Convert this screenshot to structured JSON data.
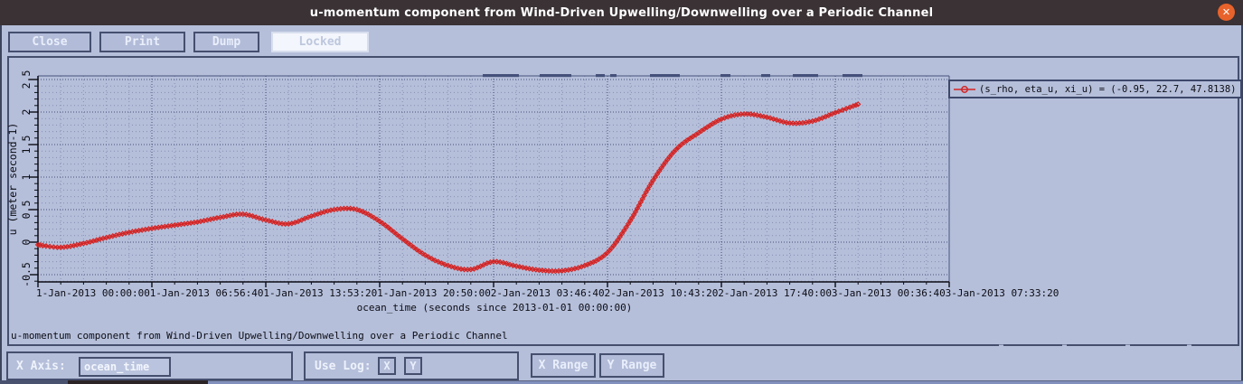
{
  "window": {
    "title": "u-momentum component from Wind-Driven Upwelling/Downwelling over a Periodic Channel",
    "close_icon": "✕"
  },
  "toolbar": {
    "close": "Close",
    "print": "Print",
    "dump": "Dump",
    "locked": "Locked"
  },
  "chart_data": {
    "type": "line",
    "title": "u-momentum component from Wind-Driven Upwelling/Downwelling over a Periodic Channel",
    "xlabel": "ocean_time (seconds since 2013-01-01 00:00:00)",
    "ylabel": "u (meter second-1)",
    "legend": "(s_rho, eta_u, xi_u) = (-0.95, 22.7, 47.8138)",
    "legend_position": "top-right",
    "grid": true,
    "xlim": [
      0,
      200000
    ],
    "ylim": [
      -0.61,
      2.56
    ],
    "x_tick_values": [
      0,
      25000,
      50000,
      75000,
      100000,
      125000,
      150000,
      175000,
      200000
    ],
    "x_tick_labels": [
      "1-Jan-2013 00:00:00",
      "1-Jan-2013 06:56:40",
      "1-Jan-2013 13:53:20",
      "1-Jan-2013 20:50:00",
      "2-Jan-2013 03:46:40",
      "2-Jan-2013 10:43:20",
      "2-Jan-2013 17:40:00",
      "3-Jan-2013 00:36:40",
      "3-Jan-2013 07:33:20"
    ],
    "y_ticks": [
      -0.5,
      0,
      0.5,
      1,
      1.5,
      2,
      2.5
    ],
    "x_minor_step": 5000,
    "y_minor_step": 0.1,
    "series": [
      {
        "name": "(s_rho, eta_u, xi_u) = (-0.95, 22.7, 47.8138)",
        "color": "#d42424",
        "marker": "open-diamond",
        "x": [
          0,
          5000,
          10000,
          15000,
          20000,
          25000,
          30000,
          35000,
          40000,
          45000,
          50000,
          55000,
          60000,
          65000,
          70000,
          75000,
          80000,
          85000,
          90000,
          95000,
          100000,
          105000,
          110000,
          115000,
          120000,
          125000,
          130000,
          135000,
          140000,
          145000,
          150000,
          155000,
          160000,
          165000,
          170000,
          175000,
          180000
        ],
        "values": [
          -0.04,
          -0.08,
          -0.02,
          0.07,
          0.15,
          0.21,
          0.26,
          0.31,
          0.38,
          0.43,
          0.34,
          0.28,
          0.4,
          0.5,
          0.5,
          0.32,
          0.05,
          -0.2,
          -0.36,
          -0.42,
          -0.3,
          -0.37,
          -0.43,
          -0.44,
          -0.36,
          -0.16,
          0.33,
          0.95,
          1.42,
          1.68,
          1.89,
          1.97,
          1.92,
          1.83,
          1.86,
          1.99,
          2.12
        ]
      }
    ]
  },
  "controls": {
    "x_axis_label": "X Axis:",
    "x_axis_value": "ocean_time",
    "use_log_label": "Use Log:",
    "log_x": "X",
    "log_y": "Y",
    "x_range": "X Range",
    "y_range": "Y Range"
  },
  "colors": {
    "titlebar_bg": "#3a3235",
    "close_button": "#e8632b",
    "window_bg": "#b5bfda",
    "widget_border": "#454f6e",
    "widget_text": "#e9eefb",
    "grid_minor": "#8791b3",
    "grid_major": "#46517a",
    "axis_text": "#0c0c14",
    "curve": "#d42424"
  }
}
